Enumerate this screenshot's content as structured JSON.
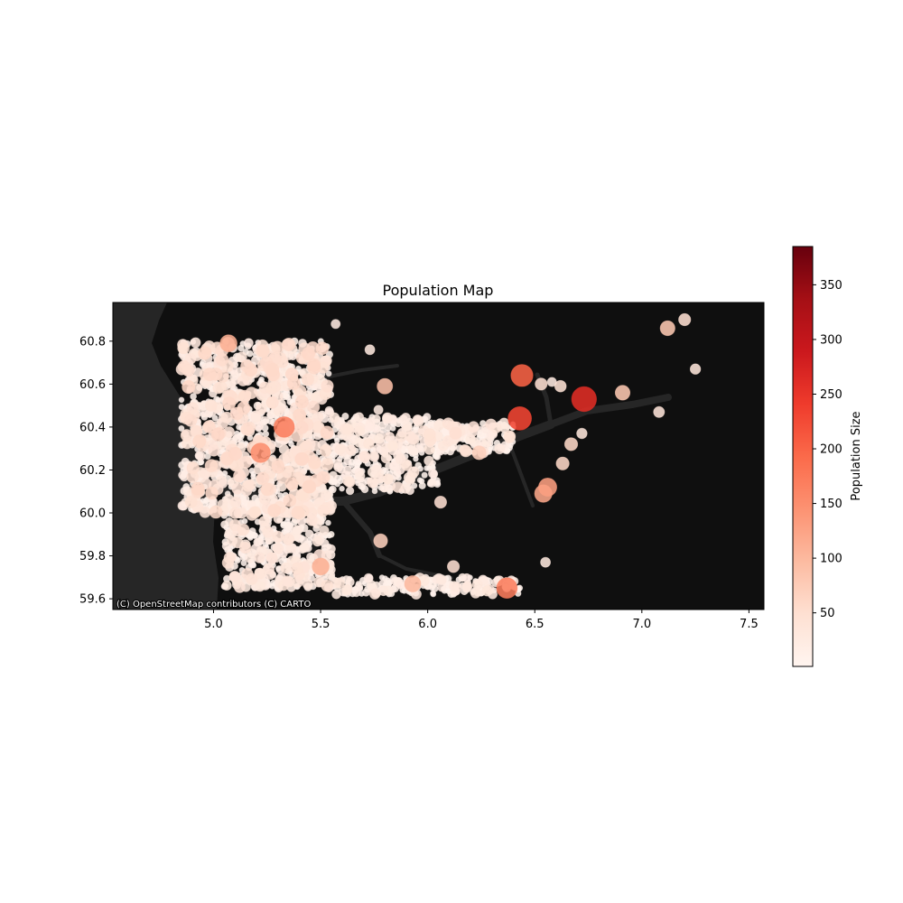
{
  "chart_data": {
    "type": "scatter",
    "title": "Population Map",
    "xlabel": "",
    "ylabel": "",
    "xlim": [
      4.53,
      7.57
    ],
    "ylim": [
      59.55,
      60.98
    ],
    "xticks": [
      5.0,
      5.5,
      6.0,
      6.5,
      7.0,
      7.5
    ],
    "xtick_labels": [
      "5.0",
      "5.5",
      "6.0",
      "6.5",
      "7.0",
      "7.5"
    ],
    "yticks": [
      59.6,
      59.8,
      60.0,
      60.2,
      60.4,
      60.6,
      60.8
    ],
    "ytick_labels": [
      "59.6",
      "59.8",
      "60.0",
      "60.2",
      "60.4",
      "60.6",
      "60.8"
    ],
    "grid": false,
    "basemap": "dark",
    "attribution": "(C) OpenStreetMap contributors (C) CARTO",
    "colormap": "Reds",
    "colorbar": {
      "label": "Population Size",
      "min": 1,
      "max": 385,
      "ticks": [
        50,
        100,
        150,
        200,
        250,
        300,
        350
      ],
      "tick_labels": [
        "50",
        "100",
        "150",
        "200",
        "250",
        "300",
        "350"
      ]
    },
    "notable_points": [
      {
        "x": 6.73,
        "y": 60.53,
        "value": 260
      },
      {
        "x": 6.43,
        "y": 60.44,
        "value": 230
      },
      {
        "x": 6.44,
        "y": 60.64,
        "value": 200
      },
      {
        "x": 6.37,
        "y": 59.65,
        "value": 170
      },
      {
        "x": 5.33,
        "y": 60.4,
        "value": 170
      },
      {
        "x": 5.22,
        "y": 60.28,
        "value": 150
      },
      {
        "x": 6.56,
        "y": 60.12,
        "value": 130
      },
      {
        "x": 6.54,
        "y": 60.09,
        "value": 120
      },
      {
        "x": 5.07,
        "y": 60.79,
        "value": 110
      },
      {
        "x": 5.5,
        "y": 59.75,
        "value": 110
      },
      {
        "x": 5.93,
        "y": 59.67,
        "value": 100
      },
      {
        "x": 5.8,
        "y": 60.59,
        "value": 90
      },
      {
        "x": 7.12,
        "y": 60.86,
        "value": 80
      },
      {
        "x": 6.91,
        "y": 60.56,
        "value": 80
      },
      {
        "x": 5.78,
        "y": 59.87,
        "value": 70
      },
      {
        "x": 6.24,
        "y": 60.28,
        "value": 70
      },
      {
        "x": 6.63,
        "y": 60.23,
        "value": 60
      },
      {
        "x": 6.67,
        "y": 60.32,
        "value": 60
      },
      {
        "x": 6.06,
        "y": 60.05,
        "value": 50
      },
      {
        "x": 6.12,
        "y": 59.75,
        "value": 50
      },
      {
        "x": 7.2,
        "y": 60.9,
        "value": 50
      },
      {
        "x": 6.53,
        "y": 60.6,
        "value": 50
      },
      {
        "x": 6.62,
        "y": 60.59,
        "value": 45
      },
      {
        "x": 5.49,
        "y": 60.4,
        "value": 45
      },
      {
        "x": 5.45,
        "y": 60.32,
        "value": 40
      },
      {
        "x": 7.08,
        "y": 60.47,
        "value": 40
      },
      {
        "x": 7.25,
        "y": 60.67,
        "value": 35
      },
      {
        "x": 6.72,
        "y": 60.37,
        "value": 35
      },
      {
        "x": 6.15,
        "y": 60.38,
        "value": 35
      },
      {
        "x": 6.55,
        "y": 59.77,
        "value": 30
      },
      {
        "x": 5.62,
        "y": 60.36,
        "value": 30
      },
      {
        "x": 5.73,
        "y": 60.76,
        "value": 30
      },
      {
        "x": 5.57,
        "y": 60.88,
        "value": 25
      },
      {
        "x": 5.77,
        "y": 60.48,
        "value": 25
      },
      {
        "x": 6.58,
        "y": 60.61,
        "value": 25
      },
      {
        "x": 5.86,
        "y": 59.68,
        "value": 20
      }
    ],
    "dense_clusters": [
      {
        "x_range": [
          4.85,
          5.55
        ],
        "y_range": [
          60.0,
          60.8
        ],
        "value_range": [
          5,
          60
        ]
      },
      {
        "x_range": [
          5.05,
          5.55
        ],
        "y_range": [
          59.65,
          60.05
        ],
        "value_range": [
          5,
          45
        ]
      },
      {
        "x_range": [
          5.55,
          6.05
        ],
        "y_range": [
          60.1,
          60.45
        ],
        "value_range": [
          5,
          40
        ]
      },
      {
        "x_range": [
          5.55,
          6.45
        ],
        "y_range": [
          59.62,
          59.7
        ],
        "value_range": [
          5,
          35
        ]
      },
      {
        "x_range": [
          6.0,
          6.4
        ],
        "y_range": [
          60.28,
          60.42
        ],
        "value_range": [
          5,
          50
        ]
      }
    ]
  }
}
